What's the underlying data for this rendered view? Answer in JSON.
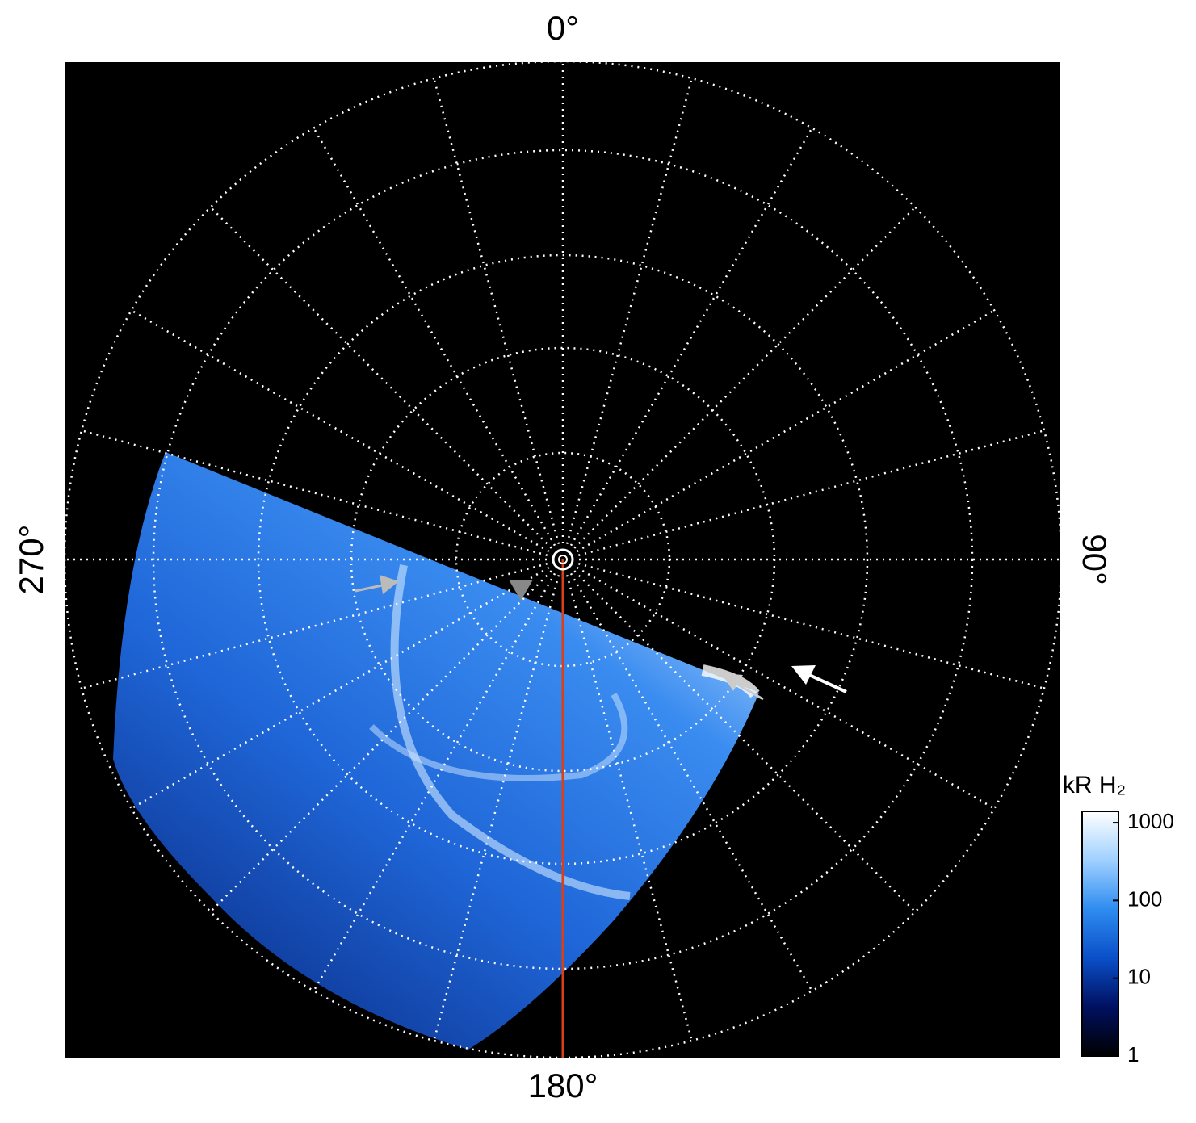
{
  "chart_data": {
    "type": "polar-image",
    "theta_ticks": [
      {
        "value": 0,
        "label": "0°"
      },
      {
        "value": 90,
        "label": "90°"
      },
      {
        "value": 180,
        "label": "180°"
      },
      {
        "value": 270,
        "label": "270°"
      }
    ],
    "colorbar": {
      "label": "kR H₂",
      "log_scale": true,
      "ylim": [
        1,
        1400
      ],
      "yticks": [
        1,
        10,
        100,
        1000
      ],
      "colors": [
        "#000000",
        "#001060",
        "#0a4fc8",
        "#2e8cf0",
        "#9fd0ff",
        "#ffffff"
      ]
    },
    "meridian_color": "#d8401a"
  }
}
